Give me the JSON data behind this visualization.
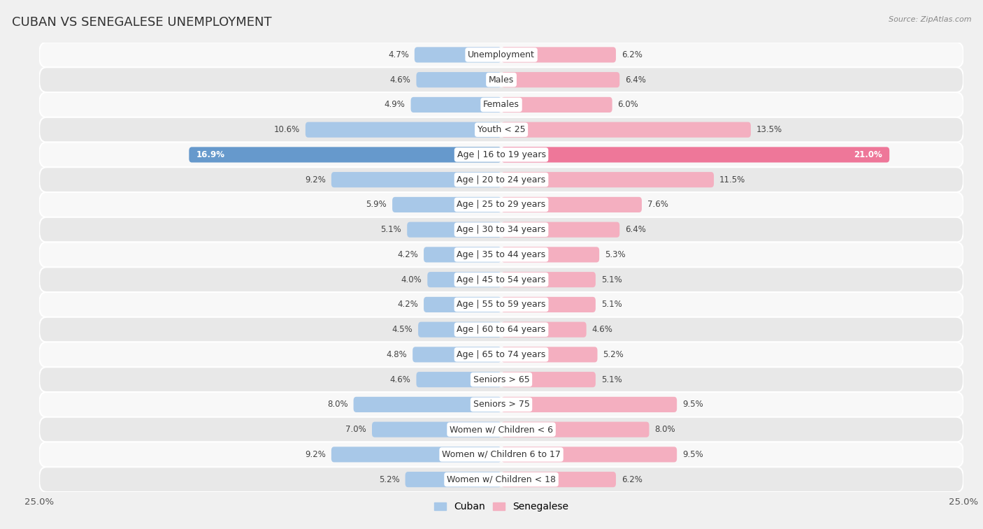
{
  "title": "CUBAN VS SENEGALESE UNEMPLOYMENT",
  "source": "Source: ZipAtlas.com",
  "categories": [
    "Unemployment",
    "Males",
    "Females",
    "Youth < 25",
    "Age | 16 to 19 years",
    "Age | 20 to 24 years",
    "Age | 25 to 29 years",
    "Age | 30 to 34 years",
    "Age | 35 to 44 years",
    "Age | 45 to 54 years",
    "Age | 55 to 59 years",
    "Age | 60 to 64 years",
    "Age | 65 to 74 years",
    "Seniors > 65",
    "Seniors > 75",
    "Women w/ Children < 6",
    "Women w/ Children 6 to 17",
    "Women w/ Children < 18"
  ],
  "cuban": [
    4.7,
    4.6,
    4.9,
    10.6,
    16.9,
    9.2,
    5.9,
    5.1,
    4.2,
    4.0,
    4.2,
    4.5,
    4.8,
    4.6,
    8.0,
    7.0,
    9.2,
    5.2
  ],
  "senegalese": [
    6.2,
    6.4,
    6.0,
    13.5,
    21.0,
    11.5,
    7.6,
    6.4,
    5.3,
    5.1,
    5.1,
    4.6,
    5.2,
    5.1,
    9.5,
    8.0,
    9.5,
    6.2
  ],
  "cuban_color": "#a8c8e8",
  "senegalese_color": "#f4afc0",
  "highlight_cuban_color": "#6699cc",
  "highlight_senegalese_color": "#ee7799",
  "background_color": "#f0f0f0",
  "row_bg_even": "#f8f8f8",
  "row_bg_odd": "#e8e8e8",
  "axis_max": 25.0,
  "bar_height": 0.62,
  "font_size_labels": 9.0,
  "font_size_title": 13,
  "font_size_values": 8.5,
  "font_size_axis": 9.5
}
